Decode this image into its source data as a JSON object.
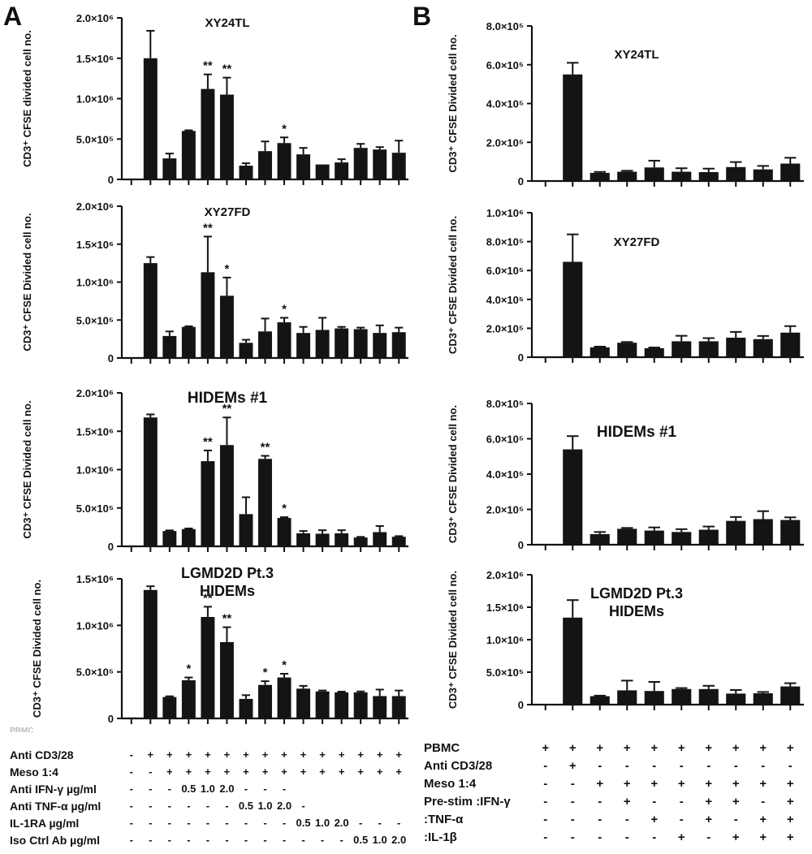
{
  "panel_labels": {
    "a": "A",
    "b": "B"
  },
  "chart_data": [
    {
      "type": "bar",
      "panel": "A",
      "title": "XY24TL",
      "ylabel": "CD3⁺ CFSE divided cell no.",
      "yticks": [
        "0",
        "5.0×10⁵",
        "1.0×10⁶",
        "1.5×10⁶",
        "2.0×10⁶"
      ],
      "ylim": [
        0,
        2000000
      ],
      "values": [
        10000,
        1500000,
        260000,
        600000,
        1120000,
        1050000,
        170000,
        350000,
        450000,
        310000,
        185000,
        210000,
        390000,
        370000,
        330000
      ],
      "errors": [
        0,
        340000,
        60000,
        8000,
        180000,
        210000,
        30000,
        120000,
        70000,
        80000,
        0,
        40000,
        50000,
        30000,
        150000
      ],
      "annotations": [
        "",
        "",
        "",
        "",
        "**",
        "**",
        "",
        "",
        "*",
        "",
        "",
        "",
        "",
        "",
        ""
      ]
    },
    {
      "type": "bar",
      "panel": "A",
      "title": "XY27FD",
      "ylabel": "CD3⁺ CFSE Divided cell no.",
      "yticks": [
        "0",
        "5.0×10⁵",
        "1.0×10⁶",
        "1.5×10⁶",
        "2.0×10⁶"
      ],
      "ylim": [
        0,
        2000000
      ],
      "values": [
        10000,
        1250000,
        290000,
        410000,
        1130000,
        820000,
        200000,
        350000,
        470000,
        330000,
        370000,
        390000,
        380000,
        330000,
        340000
      ],
      "errors": [
        0,
        80000,
        60000,
        8000,
        470000,
        240000,
        40000,
        170000,
        60000,
        80000,
        160000,
        20000,
        20000,
        100000,
        60000
      ],
      "annotations": [
        "",
        "",
        "",
        "",
        "**",
        "*",
        "",
        "",
        "*",
        "",
        "",
        "",
        "",
        "",
        ""
      ]
    },
    {
      "type": "bar",
      "panel": "A",
      "title": "HIDEMs #1",
      "ylabel": "CD3⁺ CFSE Divided cell no.",
      "yticks": [
        "0",
        "5.0×10⁵",
        "1.0×10⁶",
        "1.5×10⁶",
        "2.0×10⁶"
      ],
      "ylim": [
        0,
        2000000
      ],
      "values": [
        10000,
        1680000,
        200000,
        225000,
        1110000,
        1320000,
        420000,
        1140000,
        370000,
        170000,
        165000,
        170000,
        115000,
        185000,
        125000
      ],
      "errors": [
        0,
        40000,
        8000,
        8000,
        140000,
        360000,
        220000,
        40000,
        10000,
        30000,
        45000,
        40000,
        8000,
        80000,
        8000
      ],
      "annotations": [
        "",
        "",
        "",
        "",
        "**",
        "**",
        "",
        "**",
        "*",
        "",
        "",
        "",
        "",
        "",
        ""
      ]
    },
    {
      "type": "bar",
      "panel": "A",
      "title": "LGMD2D Pt.3 HIDEMs",
      "title_lines": [
        "LGMD2D Pt.3",
        "HIDEMs"
      ],
      "ylabel": "CD3⁺ CFSE Divided cell no.",
      "yticks": [
        "0",
        "5.0×10⁵",
        "1.0×10⁶",
        "1.5×10⁶"
      ],
      "ylim": [
        0,
        1500000
      ],
      "values": [
        10000,
        1380000,
        230000,
        410000,
        1090000,
        820000,
        210000,
        360000,
        440000,
        320000,
        290000,
        280000,
        280000,
        240000,
        240000
      ],
      "errors": [
        0,
        40000,
        8000,
        30000,
        110000,
        160000,
        40000,
        40000,
        40000,
        30000,
        10000,
        8000,
        10000,
        70000,
        60000
      ],
      "annotations": [
        "",
        "",
        "",
        "*",
        "**",
        "**",
        "",
        "*",
        "*",
        "",
        "",
        "",
        "",
        "",
        ""
      ]
    },
    {
      "type": "bar",
      "panel": "B",
      "title": "XY24TL",
      "ylabel": "CD3⁺ CFSE Divided cell no.",
      "yticks": [
        "0",
        "2.0×10⁵",
        "4.0×10⁵",
        "6.0×10⁵",
        "8.0×10⁵"
      ],
      "ylim": [
        0,
        800000
      ],
      "values": [
        3000,
        550000,
        42000,
        48000,
        70000,
        48000,
        46000,
        72000,
        60000,
        90000
      ],
      "errors": [
        0,
        60000,
        5000,
        5000,
        35000,
        18000,
        18000,
        26000,
        18000,
        30000
      ],
      "annotations": [
        "",
        "",
        "",
        "",
        "",
        "",
        "",
        "",
        "",
        ""
      ]
    },
    {
      "type": "bar",
      "panel": "B",
      "title": "XY27FD",
      "ylabel": "CD3⁺ CFSE Divided cell no.",
      "yticks": [
        "0",
        "2.0×10⁵",
        "4.0×10⁵",
        "6.0×10⁵",
        "8.0×10⁵",
        "1.0×10⁶"
      ],
      "ylim": [
        0,
        1000000
      ],
      "values": [
        3000,
        660000,
        68000,
        100000,
        62000,
        110000,
        110000,
        135000,
        125000,
        170000
      ],
      "errors": [
        0,
        190000,
        5000,
        5000,
        5000,
        38000,
        22000,
        40000,
        22000,
        45000
      ],
      "annotations": [
        "",
        "",
        "",
        "",
        "",
        "",
        "",
        "",
        "",
        ""
      ]
    },
    {
      "type": "bar",
      "panel": "B",
      "title": "HIDEMs #1",
      "ylabel": "CD3⁺ CFSE Divided cell no.",
      "yticks": [
        "0",
        "2.0×10⁵",
        "4.0×10⁵",
        "6.0×10⁵",
        "8.0×10⁵"
      ],
      "ylim": [
        0,
        800000
      ],
      "values": [
        3000,
        540000,
        60000,
        90000,
        80000,
        72000,
        85000,
        135000,
        145000,
        140000
      ],
      "errors": [
        0,
        75000,
        12000,
        5000,
        18000,
        16000,
        18000,
        22000,
        45000,
        15000
      ],
      "annotations": [
        "",
        "",
        "",
        "",
        "",
        "",
        "",
        "",
        "",
        ""
      ]
    },
    {
      "type": "bar",
      "panel": "B",
      "title": "LGMD2D Pt.3 HIDEMs",
      "title_lines": [
        "LGMD2D Pt.3",
        "HIDEMs"
      ],
      "ylabel": "CD3⁺ CFSE Divided cell no.",
      "yticks": [
        "0",
        "5.0×10⁵",
        "1.0×10⁶",
        "1.5×10⁶",
        "2.0×10⁶"
      ],
      "ylim": [
        0,
        2000000
      ],
      "values": [
        10000,
        1340000,
        130000,
        220000,
        210000,
        240000,
        240000,
        170000,
        175000,
        280000
      ],
      "errors": [
        0,
        270000,
        8000,
        150000,
        140000,
        15000,
        50000,
        55000,
        20000,
        50000
      ],
      "annotations": [
        "",
        "",
        "",
        "",
        "",
        "",
        "",
        "",
        "",
        ""
      ]
    }
  ],
  "table_a": {
    "hidden_row_label": "PBMC",
    "rows": [
      {
        "label": "Anti CD3/28",
        "cells": [
          "-",
          "+",
          "+",
          "+",
          "+",
          "+",
          "+",
          "+",
          "+",
          "+",
          "+",
          "+",
          "+",
          "+",
          "+"
        ]
      },
      {
        "label": "Meso 1:4",
        "cells": [
          "-",
          "-",
          "+",
          "+",
          "+",
          "+",
          "+",
          "+",
          "+",
          "+",
          "+",
          "+",
          "+",
          "+",
          "+"
        ]
      },
      {
        "label": "Anti IFN-γ µg/ml",
        "cells": [
          "-",
          "-",
          "-",
          "0.5",
          "1.0",
          "2.0",
          "-",
          "-",
          "-",
          "",
          "",
          "",
          "",
          "",
          ""
        ]
      },
      {
        "label": "Anti TNF-α µg/ml",
        "cells": [
          "-",
          "-",
          "-",
          "-",
          "-",
          "-",
          "0.5",
          "1.0",
          "2.0",
          "-",
          "",
          "",
          "",
          "",
          ""
        ]
      },
      {
        "label": "IL-1RA µg/ml",
        "cells": [
          "-",
          "-",
          "-",
          "-",
          "-",
          "-",
          "-",
          "-",
          "-",
          "0.5",
          "1.0",
          "2.0",
          "-",
          "-",
          "-"
        ]
      },
      {
        "label": "Iso Ctrl Ab µg/ml",
        "cells": [
          "-",
          "-",
          "-",
          "-",
          "-",
          "-",
          "-",
          "-",
          "-",
          "-",
          "-",
          "-",
          "0.5",
          "1.0",
          "2.0"
        ]
      }
    ]
  },
  "table_b": {
    "rows": [
      {
        "label": "PBMC",
        "cells": [
          "+",
          "+",
          "+",
          "+",
          "+",
          "+",
          "+",
          "+",
          "+",
          "+"
        ]
      },
      {
        "label": "Anti CD3/28",
        "cells": [
          "-",
          "+",
          "-",
          "-",
          "-",
          "-",
          "-",
          "-",
          "-",
          "-"
        ]
      },
      {
        "label": "Meso 1:4",
        "cells": [
          "-",
          "-",
          "+",
          "+",
          "+",
          "+",
          "+",
          "+",
          "+",
          "+"
        ]
      },
      {
        "label": "Pre-stim :IFN-γ",
        "cells": [
          "-",
          "-",
          "-",
          "+",
          "-",
          "-",
          "+",
          "+",
          "-",
          "+"
        ]
      },
      {
        "label": ":TNF-α",
        "cells": [
          "-",
          "-",
          "-",
          "-",
          "+",
          "-",
          "+",
          "-",
          "+",
          "+"
        ]
      },
      {
        "label": ":IL-1β",
        "cells": [
          "-",
          "-",
          "-",
          "-",
          "-",
          "+",
          "-",
          "+",
          "+",
          "+"
        ]
      }
    ]
  }
}
